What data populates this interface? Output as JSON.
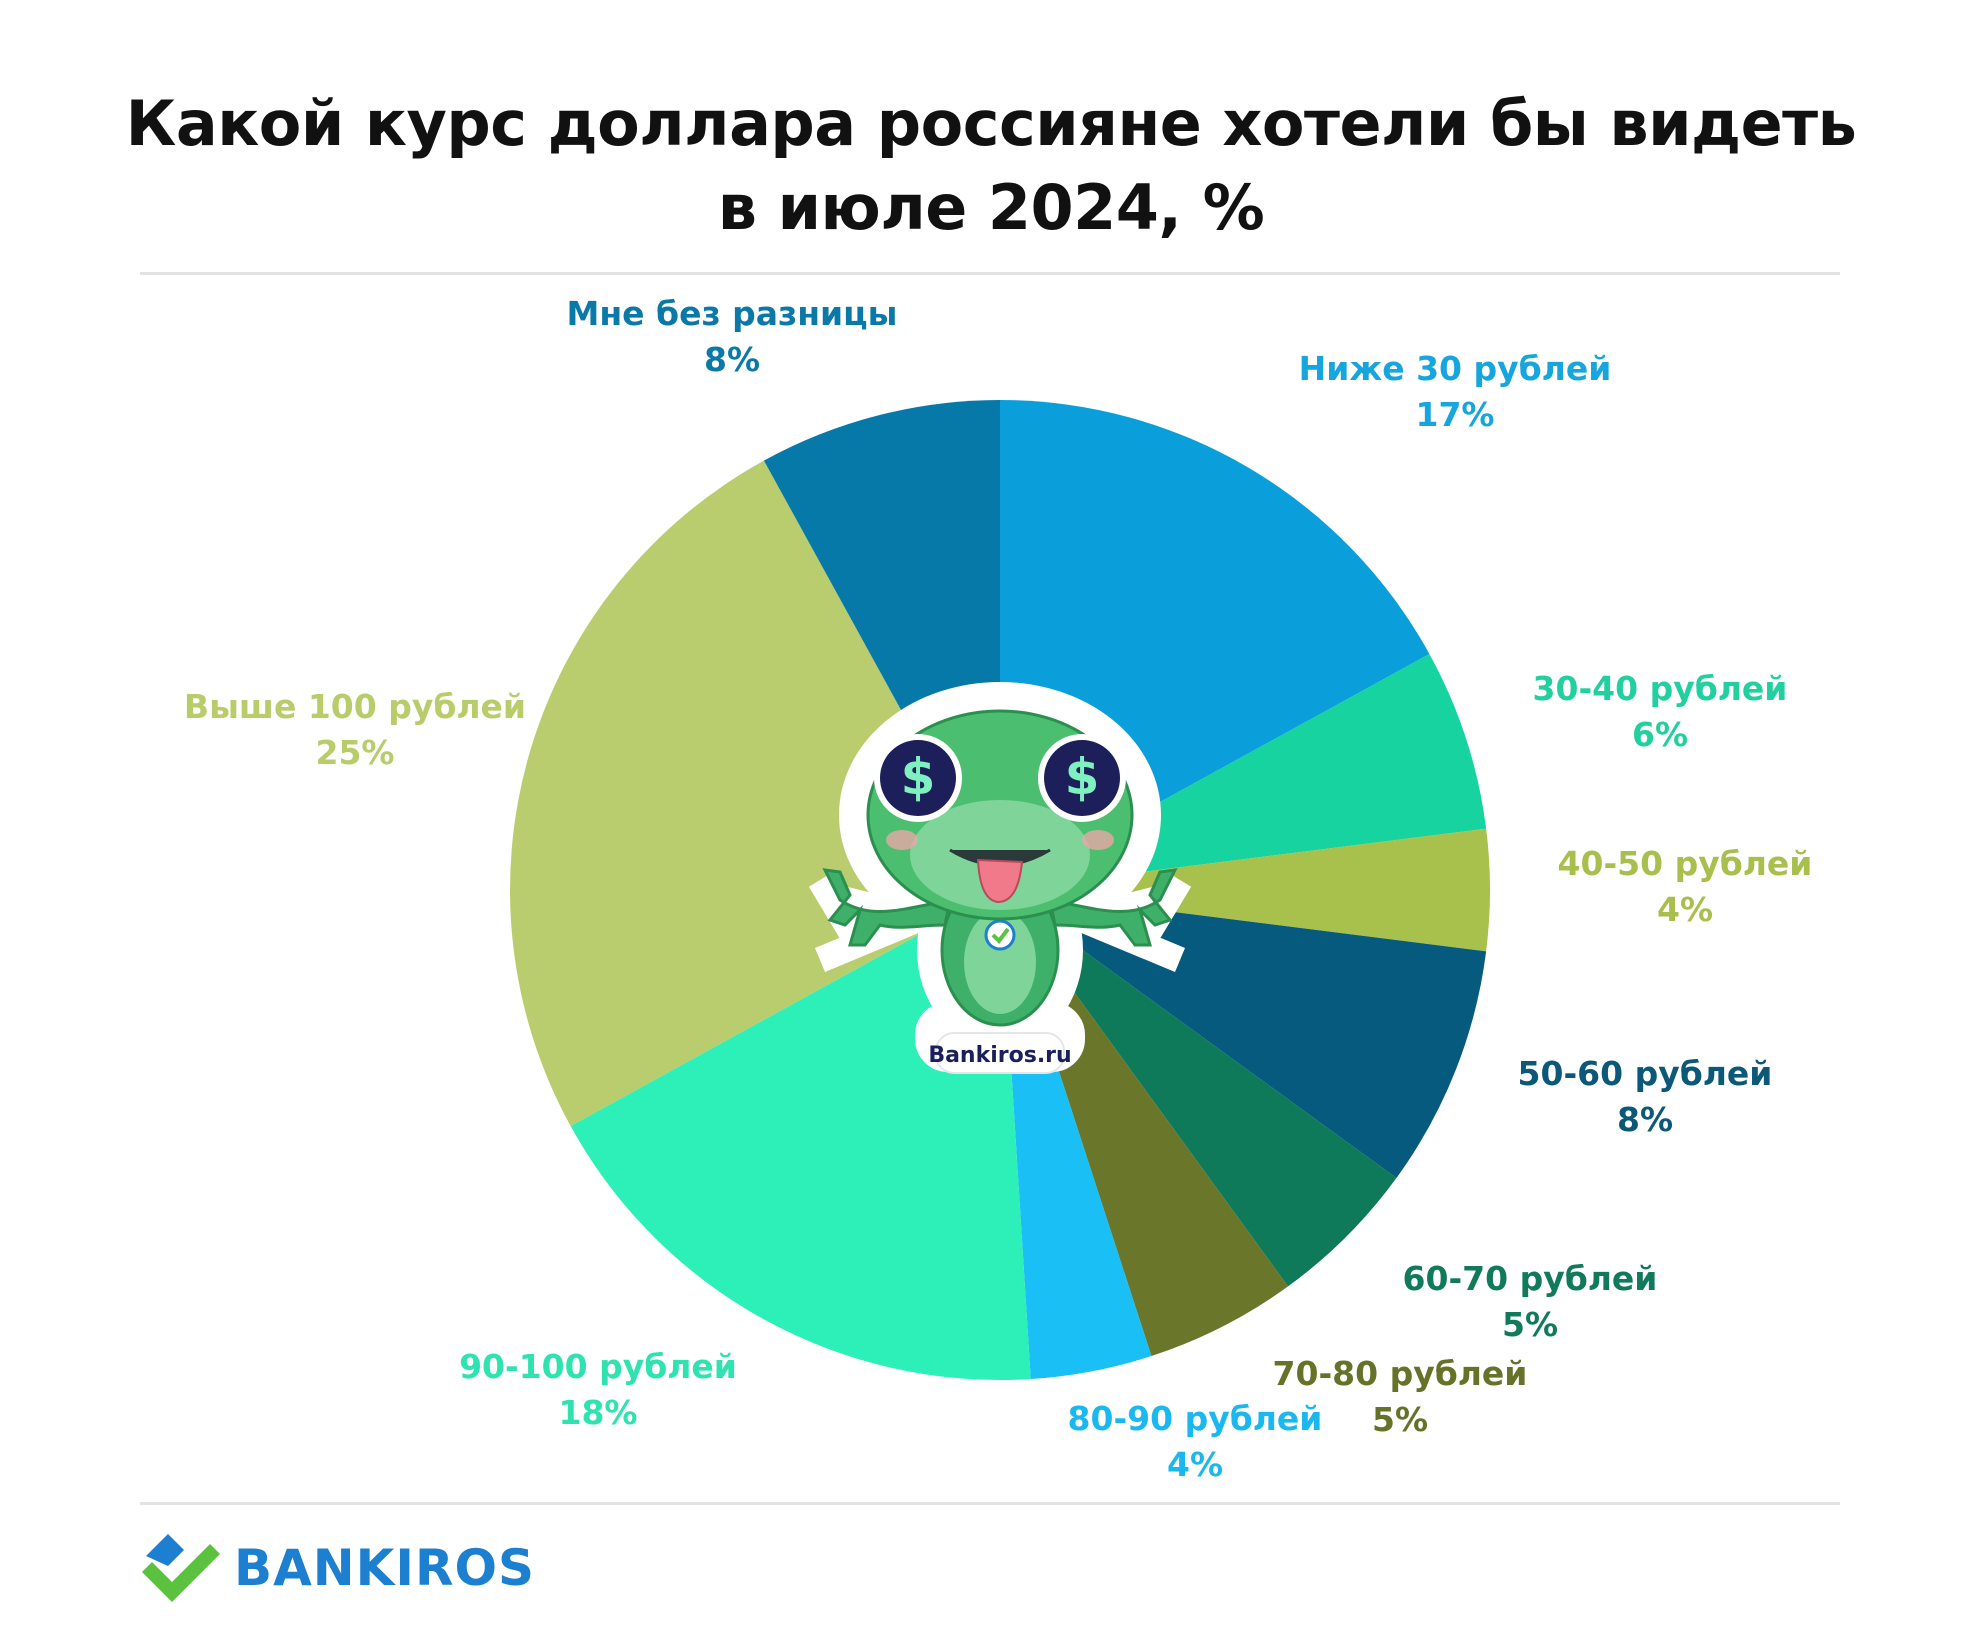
{
  "title_line1": "Какой курс доллара россияне хотели бы видеть",
  "title_line2": "в июле 2024, %",
  "chart_data": {
    "type": "pie",
    "title": "Какой курс доллара россияне хотели бы видеть в июле 2024, %",
    "unit": "%",
    "slices": [
      {
        "label": "Ниже 30 рублей",
        "value": 17,
        "display": "17%",
        "color": "#0a9edb",
        "label_color": "#16a6dd"
      },
      {
        "label": "30-40 рублей",
        "value": 6,
        "display": "6%",
        "color": "#17d3a0",
        "label_color": "#22cf9e"
      },
      {
        "label": "40-50 рублей",
        "value": 4,
        "display": "4%",
        "color": "#a7c14c",
        "label_color": "#a8bf4d"
      },
      {
        "label": "50-60 рублей",
        "value": 8,
        "display": "8%",
        "color": "#065a7e",
        "label_color": "#0b5878"
      },
      {
        "label": "60-70 рублей",
        "value": 5,
        "display": "5%",
        "color": "#0f7a5a",
        "label_color": "#107a5b"
      },
      {
        "label": "70-80 рублей",
        "value": 5,
        "display": "5%",
        "color": "#6a772b",
        "label_color": "#667228"
      },
      {
        "label": "80-90 рублей",
        "value": 4,
        "display": "4%",
        "color": "#1abff5",
        "label_color": "#1ab8ef"
      },
      {
        "label": "90-100 рублей",
        "value": 18,
        "display": "18%",
        "color": "#2cf0b8",
        "label_color": "#2ee3b0"
      },
      {
        "label": "Выше 100 рублей",
        "value": 25,
        "display": "25%",
        "color": "#bacd6e",
        "label_color": "#b8cc6a"
      },
      {
        "label": "Мне без разницы",
        "value": 8,
        "display": "8%",
        "color": "#0679a9",
        "label_color": "#0b79a7"
      }
    ],
    "start_angle_deg": 0,
    "direction": "clockwise",
    "legend": "none",
    "labels_placement": "outside"
  },
  "mascot": {
    "badge_text": "Bankiros.ru",
    "icon": "dollar-eyes-lizard-mascot"
  },
  "logo": {
    "text": "BANKIROS",
    "icon": "bankiros-heart-check-icon",
    "color": "#1d7fd0"
  }
}
